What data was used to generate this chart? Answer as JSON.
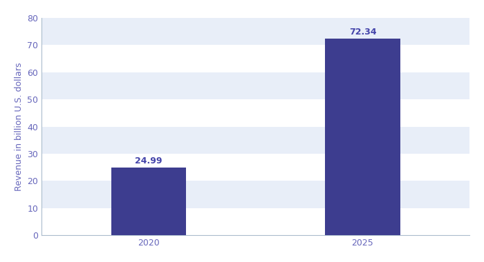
{
  "categories": [
    "2020",
    "2025"
  ],
  "values": [
    24.99,
    72.34
  ],
  "bar_color": "#3d3d8f",
  "bar_width": 0.35,
  "ylabel": "Revenue in billion U.S. dollars",
  "ylim": [
    0,
    80
  ],
  "yticks": [
    0,
    10,
    20,
    30,
    40,
    50,
    60,
    70,
    80
  ],
  "label_color": "#4444aa",
  "axis_color": "#6666bb",
  "background_color": "#ffffff",
  "plot_bg_color": "#ffffff",
  "stripe_color_light": "#e8eef8",
  "stripe_color_white": "#ffffff",
  "label_fontsize": 9,
  "ylabel_fontsize": 9,
  "tick_fontsize": 9,
  "annotation_fontsize": 9
}
